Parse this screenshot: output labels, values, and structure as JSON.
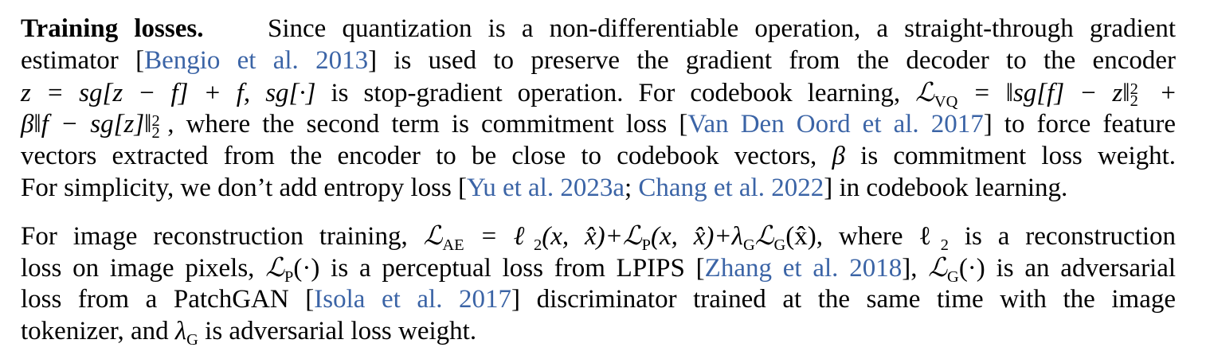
{
  "section": {
    "heading": "Training losses.",
    "p1": {
      "l1_text": "Since quantization is a non-differentiable operation, a straight-through gradient",
      "l2_a": "estimator [",
      "l2_cite": "Bengio et al. 2013",
      "l2_b": "] is used to preserve the gradient from the decoder to the encoder",
      "l3_eq": "z = sg[z − f] + f, sg[·]",
      "l3_text": "is stop-gradient operation. For codebook learning,",
      "l3_eq2": "ℒ",
      "l3_eq2_sub": "VQ",
      "l3_eq3": "= ‖sg[f] − z‖",
      "l3_sup": "2",
      "l3_sub": "2",
      "l3_plus": "+",
      "l4_eq": "β‖f − sg[z]‖",
      "l4_sup": "2",
      "l4_sub": "2",
      "l4_a": ", where the second term is commitment loss [",
      "l4_cite": "Van Den Oord et al. 2017",
      "l4_b": "] to force feature",
      "l5_a": "vectors extracted from the encoder to be close to codebook vectors,",
      "l5_beta": "β",
      "l5_b": "is commitment loss weight.",
      "l6_a": "For simplicity, we don’t add entropy loss [",
      "l6_cite1": "Yu et al. 2023a",
      "l6_sep": "; ",
      "l6_cite2": "Chang et al. 2022",
      "l6_b": "] in codebook learning."
    },
    "p2": {
      "l1_a": "For image reconstruction training,",
      "l1_eq": "ℒ",
      "l1_eq_sub": "AE",
      "l1_eq_b": "= ℓ",
      "l1_eq_b_sub": "2",
      "l1_eq_c": "(x, x̂)+ℒ",
      "l1_eq_c_sub": "P",
      "l1_eq_d": "(x, x̂)+λ",
      "l1_eq_d_sub": "G",
      "l1_eq_e": "ℒ",
      "l1_eq_e_sub": "G",
      "l1_eq_f": "(x̂), where ℓ",
      "l1_eq_f_sub": "2",
      "l1_b": "is a reconstruction",
      "l2_a": "loss on image pixels,",
      "l2_eq": "ℒ",
      "l2_eq_sub": "P",
      "l2_eq_b": "(·)",
      "l2_b": "is a perceptual loss from LPIPS [",
      "l2_cite": "Zhang et al. 2018",
      "l2_c": "],",
      "l2_eq2": "ℒ",
      "l2_eq2_sub": "G",
      "l2_eq2_b": "(·)",
      "l2_d": "is an adversarial",
      "l3_a": "loss from a PatchGAN [",
      "l3_cite": "Isola et al. 2017",
      "l3_b": "] discriminator trained at the same time with the image",
      "l4_a": "tokenizer, and",
      "l4_eq": "λ",
      "l4_eq_sub": "G",
      "l4_b": "is adversarial loss weight."
    }
  }
}
